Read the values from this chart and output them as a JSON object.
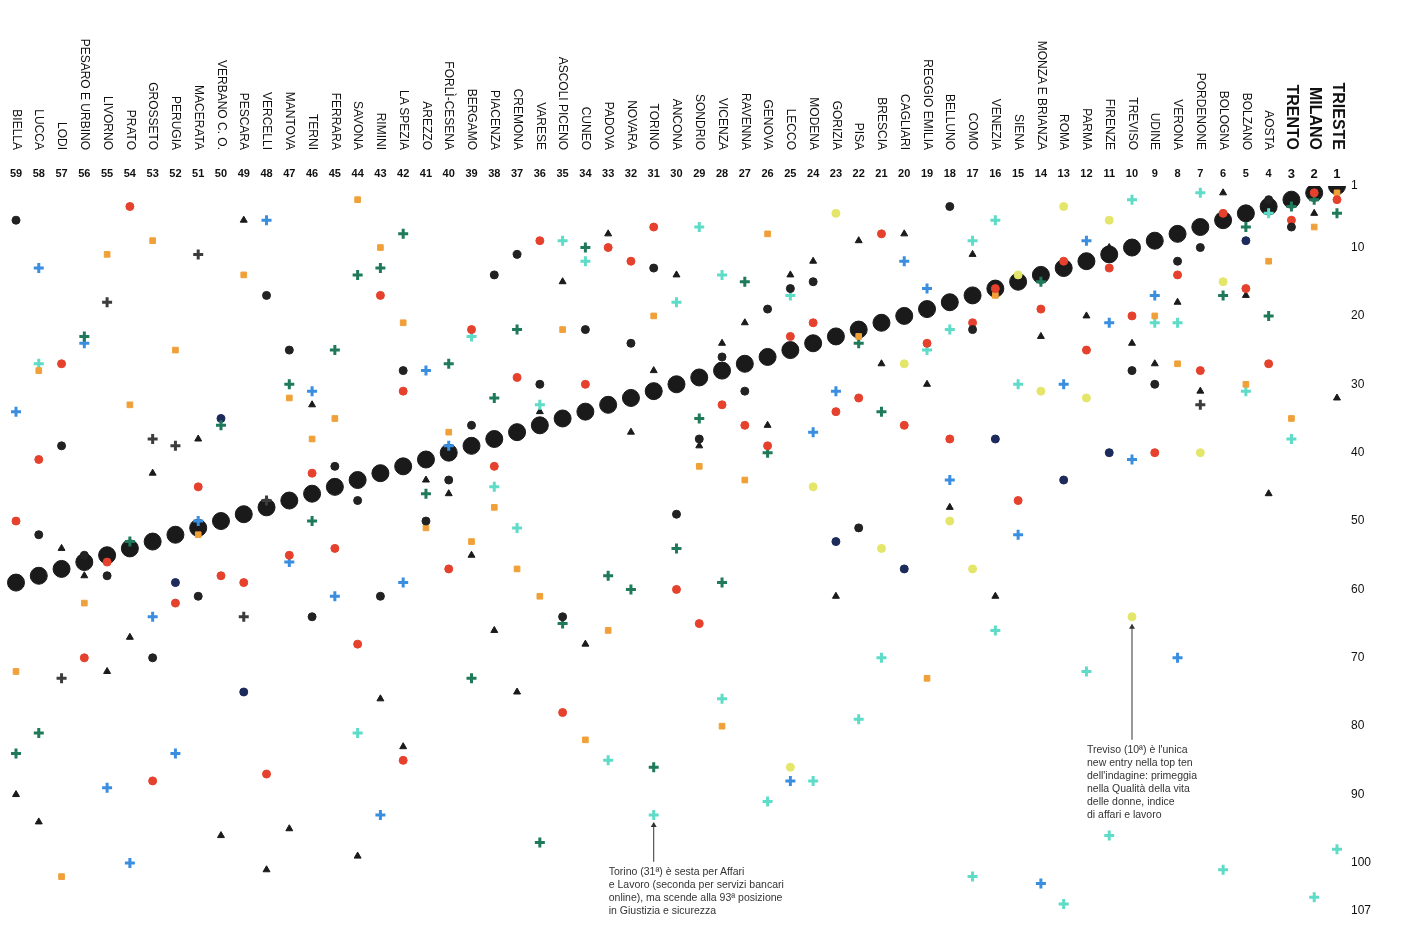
{
  "chart_data": {
    "type": "scatter",
    "categories": [
      "BIELLA",
      "LUCCA",
      "LODI",
      "PESARO E URBINO",
      "LIVORNO",
      "PRATO",
      "GROSSETO",
      "PERUGIA",
      "MACERATA",
      "VERBANO C. O.",
      "PESCARA",
      "VERCELLI",
      "MANTOVA",
      "TERNI",
      "FERRARA",
      "SAVONA",
      "RIMINI",
      "LA SPEZIA",
      "AREZZO",
      "FORLÌ-CESENA",
      "BERGAMO",
      "PIACENZA",
      "CREMONA",
      "VARESE",
      "ASCOLI PICENO",
      "CUNEO",
      "PADOVA",
      "NOVARA",
      "TORINO",
      "ANCONA",
      "SONDRIO",
      "VICENZA",
      "RAVENNA",
      "GENOVA",
      "LECCO",
      "MODENA",
      "GORIZIA",
      "PISA",
      "BRESCIA",
      "CAGLIARI",
      "REGGIO EMILIA",
      "BELLUNO",
      "COMO",
      "VENEZIA",
      "SIENA",
      "MONZA E BRIANZA",
      "ROMA",
      "PARMA",
      "FIRENZE",
      "TREVISO",
      "UDINE",
      "VERONA",
      "PORDENONE",
      "BOLOGNA",
      "BOLZANO",
      "AOSTA",
      "TRENTO",
      "MILANO",
      "TRIESTE"
    ],
    "series": [
      {
        "color": "#1a1a1a",
        "marker": "circle",
        "values": [
          59,
          58,
          57,
          56,
          55,
          54,
          53,
          52,
          51,
          50,
          49,
          48,
          47,
          46,
          45,
          44,
          43,
          42,
          41,
          40,
          39,
          38,
          37,
          36,
          35,
          34,
          33,
          32,
          31,
          30,
          29,
          28,
          27,
          26,
          25,
          24,
          23,
          22,
          21,
          20,
          19,
          18,
          17,
          16,
          15,
          14,
          13,
          12,
          11,
          10,
          9,
          8,
          7,
          6,
          5,
          4,
          3,
          2,
          1
        ]
      },
      {
        "color": "#222222",
        "marker": "circle",
        "values": [
          6,
          52,
          39,
          55,
          58,
          null,
          70,
          null,
          61,
          null,
          null,
          17,
          25,
          64,
          42,
          47,
          61,
          28,
          50,
          44,
          36,
          14,
          11,
          30,
          64,
          22,
          null,
          24,
          13,
          49,
          38,
          26,
          31,
          19,
          16,
          15,
          null,
          51,
          null,
          null,
          null,
          4,
          22,
          null,
          null,
          null,
          null,
          null,
          null,
          28,
          30,
          12,
          10,
          null,
          null,
          3,
          7,
          null,
          null
        ]
      },
      {
        "color": "#e5412d",
        "marker": "circle",
        "values": [
          50,
          41,
          27,
          70,
          56,
          4,
          88,
          62,
          45,
          58,
          59,
          87,
          55,
          43,
          54,
          68,
          17,
          31,
          null,
          57,
          22,
          42,
          29,
          9,
          78,
          30,
          10,
          12,
          7,
          60,
          65,
          33,
          36,
          39,
          23,
          21,
          34,
          32,
          8,
          36,
          24,
          38,
          21,
          16,
          47,
          19,
          12,
          25,
          13,
          20,
          40,
          14,
          28,
          5,
          16,
          27,
          6,
          2,
          3
        ]
      },
      {
        "color": "#e5412d",
        "marker": "circle",
        "values": [
          null,
          null,
          null,
          null,
          null,
          null,
          null,
          null,
          null,
          null,
          null,
          null,
          null,
          null,
          null,
          null,
          null,
          85,
          null,
          null,
          null,
          null,
          null,
          null,
          null,
          null,
          null,
          null,
          null,
          null,
          null,
          null,
          null,
          null,
          null,
          null,
          null,
          null,
          null,
          null,
          null,
          null,
          null,
          null,
          null,
          null,
          null,
          null,
          null,
          null,
          null,
          null,
          null,
          null,
          null,
          null,
          null,
          null,
          null
        ]
      },
      {
        "color": "#f0a038",
        "marker": "square",
        "values": [
          72,
          28,
          102,
          62,
          11,
          33,
          9,
          25,
          52,
          null,
          14,
          null,
          32,
          38,
          35,
          3,
          10,
          21,
          51,
          37,
          53,
          48,
          57,
          61,
          22,
          82,
          66,
          null,
          20,
          null,
          42,
          80,
          44,
          8,
          null,
          null,
          null,
          23,
          null,
          null,
          73,
          null,
          null,
          17,
          null,
          null,
          null,
          null,
          null,
          null,
          20,
          27,
          null,
          null,
          30,
          12,
          35,
          7,
          2
        ]
      },
      {
        "color": "#1e7a58",
        "marker": "cross",
        "values": [
          84,
          81,
          null,
          23,
          null,
          53,
          null,
          null,
          null,
          36,
          null,
          null,
          30,
          50,
          25,
          14,
          13,
          8,
          46,
          27,
          73,
          32,
          22,
          97,
          65,
          10,
          58,
          60,
          86,
          54,
          35,
          59,
          15,
          40,
          null,
          null,
          null,
          24,
          34,
          null,
          null,
          null,
          null,
          null,
          null,
          15,
          null,
          null,
          null,
          null,
          null,
          null,
          null,
          17,
          7,
          20,
          4,
          3,
          5
        ]
      },
      {
        "color": "#5fdcc8",
        "marker": "cross",
        "values": [
          null,
          27,
          null,
          null,
          null,
          null,
          null,
          null,
          null,
          null,
          null,
          null,
          null,
          null,
          null,
          81,
          null,
          null,
          null,
          null,
          23,
          45,
          51,
          33,
          9,
          12,
          85,
          null,
          93,
          18,
          7,
          14,
          null,
          91,
          17,
          88,
          null,
          79,
          70,
          null,
          25,
          22,
          9,
          6,
          30,
          null,
          106,
          72,
          96,
          3,
          21,
          21,
          2,
          101,
          31,
          5,
          38,
          105,
          98
        ]
      },
      {
        "color": "#5fdcc8",
        "marker": "cross",
        "values": [
          null,
          null,
          null,
          null,
          null,
          null,
          null,
          null,
          null,
          null,
          null,
          null,
          null,
          null,
          null,
          null,
          null,
          null,
          null,
          null,
          null,
          null,
          null,
          null,
          null,
          null,
          null,
          null,
          null,
          null,
          null,
          76,
          null,
          null,
          null,
          null,
          null,
          null,
          null,
          null,
          null,
          null,
          102,
          66,
          null,
          null,
          null,
          null,
          null,
          null,
          null,
          null,
          null,
          null,
          null,
          null,
          null,
          null,
          null
        ]
      },
      {
        "color": "#3a8ee0",
        "marker": "cross",
        "values": [
          34,
          13,
          null,
          24,
          89,
          100,
          64,
          84,
          50,
          null,
          null,
          6,
          56,
          31,
          61,
          null,
          93,
          59,
          28,
          39,
          null,
          null,
          null,
          null,
          null,
          null,
          null,
          null,
          null,
          null,
          null,
          null,
          null,
          null,
          88,
          37,
          31,
          null,
          null,
          12,
          16,
          44,
          null,
          null,
          52,
          103,
          30,
          9,
          21,
          41,
          17,
          70,
          null,
          null,
          null,
          null,
          null,
          null,
          null
        ]
      },
      {
        "color": "#1a1a1a",
        "marker": "triangle",
        "values": [
          90,
          94,
          54,
          58,
          72,
          67,
          43,
          null,
          38,
          96,
          6,
          101,
          95,
          33,
          null,
          99,
          76,
          83,
          44,
          46,
          55,
          66,
          75,
          34,
          15,
          68,
          8,
          37,
          28,
          14,
          39,
          24,
          21,
          36,
          14,
          12,
          61,
          9,
          27,
          8,
          30,
          48,
          11,
          61,
          null,
          23,
          null,
          20,
          10,
          24,
          27,
          18,
          31,
          2,
          17,
          46,
          null,
          5,
          32
        ]
      },
      {
        "color": "#3c3c3c",
        "marker": "cross",
        "values": [
          null,
          null,
          73,
          null,
          18,
          null,
          38,
          39,
          11,
          null,
          64,
          47,
          null,
          null,
          null,
          null,
          null,
          null,
          null,
          null,
          null,
          null,
          null,
          null,
          null,
          null,
          null,
          null,
          null,
          null,
          null,
          null,
          null,
          null,
          null,
          null,
          null,
          null,
          null,
          null,
          null,
          null,
          null,
          null,
          null,
          null,
          null,
          null,
          null,
          null,
          null,
          null,
          33,
          null,
          null,
          null,
          null,
          null,
          null
        ]
      },
      {
        "color": "#e4e66a",
        "marker": "circle",
        "values": [
          null,
          null,
          null,
          null,
          null,
          null,
          null,
          null,
          null,
          null,
          null,
          null,
          null,
          null,
          null,
          null,
          null,
          null,
          null,
          null,
          null,
          null,
          null,
          null,
          null,
          null,
          null,
          null,
          null,
          null,
          null,
          null,
          null,
          null,
          86,
          45,
          5,
          null,
          54,
          27,
          null,
          50,
          57,
          null,
          14,
          31,
          4,
          32,
          6,
          64,
          null,
          null,
          40,
          15,
          null,
          null,
          null,
          null,
          null
        ]
      },
      {
        "color": "#1c2a5c",
        "marker": "circle",
        "values": [
          null,
          null,
          null,
          null,
          null,
          null,
          null,
          59,
          null,
          35,
          75,
          null,
          null,
          null,
          null,
          null,
          null,
          null,
          null,
          null,
          null,
          null,
          null,
          null,
          null,
          null,
          null,
          null,
          null,
          null,
          null,
          null,
          null,
          null,
          null,
          null,
          53,
          null,
          null,
          57,
          null,
          null,
          null,
          38,
          null,
          null,
          44,
          null,
          40,
          null,
          null,
          null,
          null,
          null,
          9,
          null,
          null,
          null,
          null
        ]
      }
    ],
    "x2lim": [
      59,
      1
    ],
    "x2ticks": [
      59,
      58,
      57,
      56,
      55,
      54,
      53,
      52,
      51,
      50,
      49,
      48,
      47,
      46,
      45,
      44,
      43,
      42,
      41,
      40,
      39,
      38,
      37,
      36,
      35,
      34,
      33,
      32,
      31,
      30,
      29,
      28,
      27,
      26,
      25,
      24,
      23,
      22,
      21,
      20,
      19,
      18,
      17,
      16,
      15,
      14,
      13,
      12,
      11,
      10,
      9,
      8,
      7,
      6,
      5,
      4,
      3,
      2,
      1
    ],
    "ylim": [
      107,
      1
    ],
    "yticks": [
      1,
      10,
      20,
      30,
      40,
      50,
      60,
      70,
      80,
      90,
      100,
      107
    ],
    "grid": false,
    "legend": false,
    "annotations": [
      {
        "text": "Torino (31ª) è sesta per Affari\ne Lavoro (seconda per servizi bancari\nonline), ma scende alla 93ª posizione\nin Giustizia e sicurezza",
        "x": "TORINO",
        "y": 93
      },
      {
        "text": "Treviso (10ª) è l'unica\nnew entry nella top ten\ndell'indagine: primeggia\nnella Qualità della vita\ndelle donne, indice\ndi affari e lavoro",
        "x": "TREVISO",
        "y": 64
      }
    ]
  }
}
